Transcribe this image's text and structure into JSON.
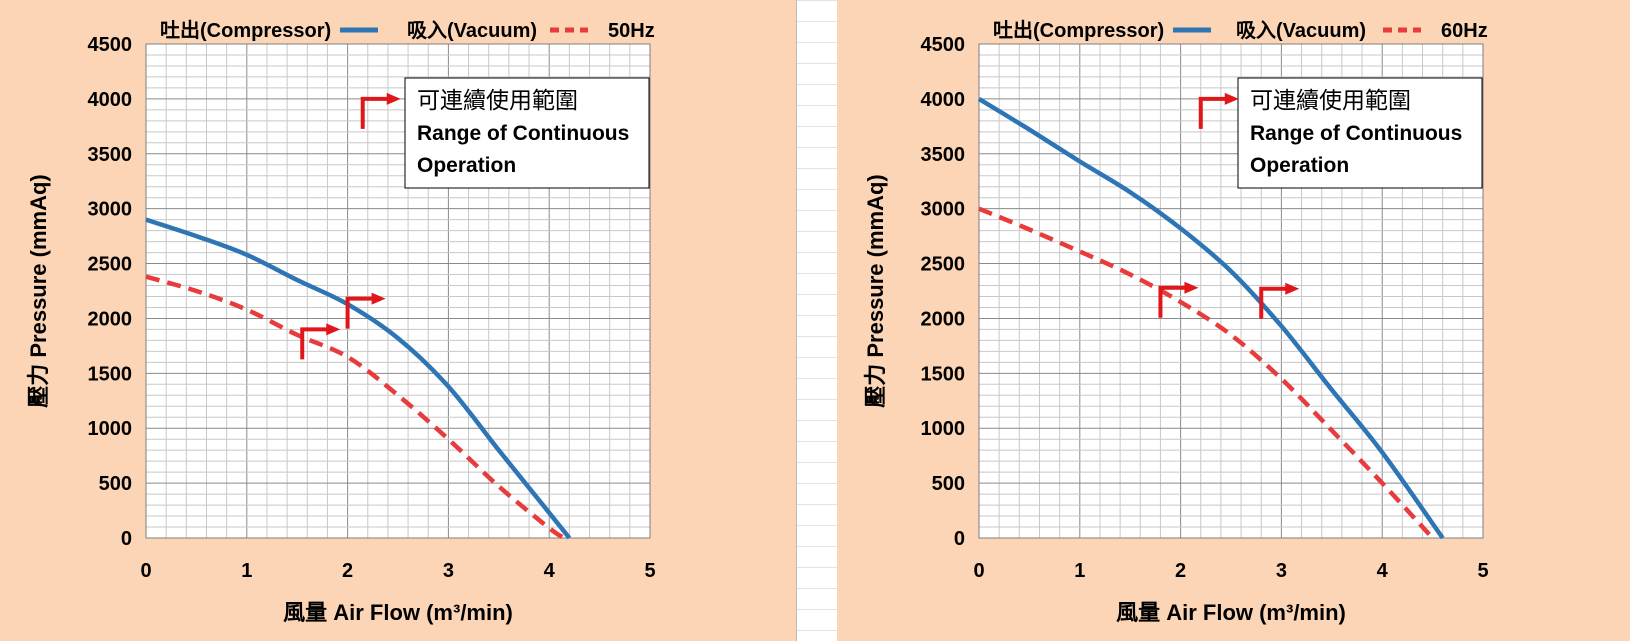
{
  "colors": {
    "background": "#fbd5b5",
    "compressor": "#2e75b6",
    "vacuum": "#e83b3b",
    "arrow": "#e0161a",
    "grid_minor": "#c8c8c8",
    "grid_major": "#8a8a8a"
  },
  "chart_data": [
    {
      "type": "line",
      "frequency_label": "50Hz",
      "xlabel": "風量 Air Flow (m³/min)",
      "ylabel": "壓力 Pressure (mmAq)",
      "xlim": [
        0,
        5
      ],
      "ylim": [
        0,
        4500
      ],
      "x_ticks": [
        "0",
        "1",
        "2",
        "3",
        "4",
        "5"
      ],
      "y_ticks": [
        "0",
        "500",
        "1000",
        "1500",
        "2000",
        "2500",
        "3000",
        "3500",
        "4000",
        "4500"
      ],
      "grid": "on",
      "legend_position": "top",
      "series": [
        {
          "name": "吐出(Compressor)",
          "style": "solid",
          "x": [
            0,
            0.5,
            1.0,
            1.5,
            2.0,
            2.5,
            3.0,
            3.5,
            4.0,
            4.2
          ],
          "y": [
            2900,
            2750,
            2580,
            2350,
            2130,
            1820,
            1380,
            800,
            230,
            0
          ]
        },
        {
          "name": "吸入(Vacuum)",
          "style": "dashed",
          "x": [
            0,
            0.5,
            1.0,
            1.5,
            2.0,
            2.5,
            3.0,
            3.5,
            4.0,
            4.15
          ],
          "y": [
            2380,
            2250,
            2080,
            1850,
            1650,
            1300,
            900,
            470,
            90,
            0
          ]
        }
      ],
      "annotation": {
        "zh": "可連續使用範圍",
        "en_line1": "Range of Continuous",
        "en_line2": "Operation"
      },
      "markers": [
        {
          "x": 1.55,
          "y": 1900
        },
        {
          "x": 2.0,
          "y": 2180
        }
      ],
      "legend_marker": {
        "x": 2.15,
        "y": 4000
      }
    },
    {
      "type": "line",
      "frequency_label": "60Hz",
      "xlabel": "風量 Air Flow (m³/min)",
      "ylabel": "壓力 Pressure (mmAq)",
      "xlim": [
        0,
        5
      ],
      "ylim": [
        0,
        4500
      ],
      "x_ticks": [
        "0",
        "1",
        "2",
        "3",
        "4",
        "5"
      ],
      "y_ticks": [
        "0",
        "500",
        "1000",
        "1500",
        "2000",
        "2500",
        "3000",
        "3500",
        "4000",
        "4500"
      ],
      "grid": "on",
      "legend_position": "top",
      "series": [
        {
          "name": "吐出(Compressor)",
          "style": "solid",
          "x": [
            0,
            0.5,
            1.0,
            1.5,
            2.0,
            2.5,
            3.0,
            3.5,
            4.0,
            4.6
          ],
          "y": [
            4000,
            3720,
            3430,
            3150,
            2820,
            2430,
            1930,
            1350,
            780,
            0
          ]
        },
        {
          "name": "吸入(Vacuum)",
          "style": "dashed",
          "x": [
            0,
            0.5,
            1.0,
            1.5,
            2.0,
            2.5,
            3.0,
            3.5,
            4.0,
            4.5
          ],
          "y": [
            3000,
            2810,
            2610,
            2400,
            2150,
            1850,
            1450,
            980,
            500,
            0
          ]
        }
      ],
      "annotation": {
        "zh": "可連續使用範圍",
        "en_line1": "Range of Continuous",
        "en_line2": "Operation"
      },
      "markers": [
        {
          "x": 1.8,
          "y": 2280
        },
        {
          "x": 2.8,
          "y": 2270
        }
      ],
      "legend_marker": {
        "x": 2.2,
        "y": 4000
      }
    }
  ]
}
